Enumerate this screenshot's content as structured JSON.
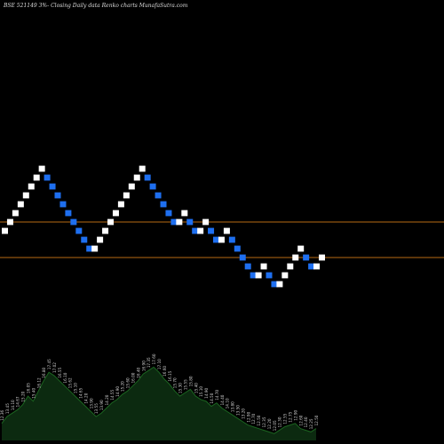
{
  "chart_data": {
    "type": "renko",
    "title": "BSE 521149 3%-  Closing Daily data  Renko  charts MunafaSutra.com",
    "colors": {
      "up_brick": "#ffffff",
      "down_brick": "#1e6ff0",
      "reference_line": "#b86a14",
      "volume_fill": "#0c2a10",
      "volume_line": "#1b6420",
      "background": "#000000"
    },
    "price_range": [
      0,
      48
    ],
    "reference_lines": [
      25,
      21
    ],
    "bricks": [
      {
        "dir": "up",
        "level": 24
      },
      {
        "dir": "up",
        "level": 25
      },
      {
        "dir": "up",
        "level": 26
      },
      {
        "dir": "up",
        "level": 27
      },
      {
        "dir": "up",
        "level": 28
      },
      {
        "dir": "up",
        "level": 29
      },
      {
        "dir": "up",
        "level": 30
      },
      {
        "dir": "up",
        "level": 31
      },
      {
        "dir": "down",
        "level": 30
      },
      {
        "dir": "down",
        "level": 29
      },
      {
        "dir": "down",
        "level": 28
      },
      {
        "dir": "down",
        "level": 27
      },
      {
        "dir": "down",
        "level": 26
      },
      {
        "dir": "down",
        "level": 25
      },
      {
        "dir": "down",
        "level": 24
      },
      {
        "dir": "down",
        "level": 23
      },
      {
        "dir": "down",
        "level": 22
      },
      {
        "dir": "up",
        "level": 22
      },
      {
        "dir": "up",
        "level": 23
      },
      {
        "dir": "up",
        "level": 24
      },
      {
        "dir": "up",
        "level": 25
      },
      {
        "dir": "up",
        "level": 26
      },
      {
        "dir": "up",
        "level": 27
      },
      {
        "dir": "up",
        "level": 28
      },
      {
        "dir": "up",
        "level": 29
      },
      {
        "dir": "up",
        "level": 30
      },
      {
        "dir": "up",
        "level": 31
      },
      {
        "dir": "down",
        "level": 30
      },
      {
        "dir": "down",
        "level": 29
      },
      {
        "dir": "down",
        "level": 28
      },
      {
        "dir": "down",
        "level": 27
      },
      {
        "dir": "down",
        "level": 26
      },
      {
        "dir": "down",
        "level": 25
      },
      {
        "dir": "up",
        "level": 25
      },
      {
        "dir": "up",
        "level": 26
      },
      {
        "dir": "down",
        "level": 25
      },
      {
        "dir": "down",
        "level": 24
      },
      {
        "dir": "up",
        "level": 24
      },
      {
        "dir": "up",
        "level": 25
      },
      {
        "dir": "down",
        "level": 24
      },
      {
        "dir": "down",
        "level": 23
      },
      {
        "dir": "up",
        "level": 23
      },
      {
        "dir": "up",
        "level": 24
      },
      {
        "dir": "down",
        "level": 23
      },
      {
        "dir": "down",
        "level": 22
      },
      {
        "dir": "down",
        "level": 21
      },
      {
        "dir": "down",
        "level": 20
      },
      {
        "dir": "down",
        "level": 19
      },
      {
        "dir": "up",
        "level": 19
      },
      {
        "dir": "up",
        "level": 20
      },
      {
        "dir": "down",
        "level": 19
      },
      {
        "dir": "down",
        "level": 18
      },
      {
        "dir": "up",
        "level": 18
      },
      {
        "dir": "up",
        "level": 19
      },
      {
        "dir": "up",
        "level": 20
      },
      {
        "dir": "up",
        "level": 21
      },
      {
        "dir": "up",
        "level": 22
      },
      {
        "dir": "down",
        "level": 21
      },
      {
        "dir": "down",
        "level": 20
      },
      {
        "dir": "up",
        "level": 20
      },
      {
        "dir": "up",
        "level": 21
      }
    ],
    "volume_range": [
      0,
      100
    ],
    "volume": [
      20,
      28,
      32,
      36,
      42,
      52,
      46,
      58,
      70,
      80,
      76,
      70,
      64,
      58,
      52,
      46,
      40,
      34,
      28,
      32,
      38,
      44,
      48,
      54,
      58,
      64,
      70,
      78,
      82,
      86,
      80,
      72,
      66,
      58,
      52,
      56,
      60,
      52,
      48,
      46,
      40,
      44,
      38,
      34,
      30,
      26,
      22,
      18,
      16,
      14,
      12,
      10,
      8,
      12,
      16,
      18,
      20,
      14,
      12,
      10,
      14
    ],
    "volume_labels": [
      "12.36",
      "13.45",
      "14.10",
      "14.67",
      "15.20",
      "16.05",
      "15.40",
      "16.12",
      "16.80",
      "17.45",
      "17.02",
      "16.55",
      "16.10",
      "15.62",
      "15.10",
      "14.65",
      "14.20",
      "13.90",
      "13.55",
      "13.90",
      "14.20",
      "14.55",
      "14.90",
      "15.20",
      "15.60",
      "16.00",
      "16.40",
      "16.90",
      "17.35",
      "17.60",
      "17.10",
      "16.60",
      "16.15",
      "15.70",
      "15.30",
      "15.55",
      "15.80",
      "15.40",
      "15.10",
      "14.90",
      "14.50",
      "14.70",
      "14.40",
      "14.10",
      "13.80",
      "13.50",
      "13.20",
      "12.90",
      "12.70",
      "12.50",
      "12.35",
      "12.20",
      "12.05",
      "12.30",
      "12.55",
      "12.75",
      "12.90",
      "12.60",
      "12.40",
      "12.25",
      "12.50"
    ]
  }
}
